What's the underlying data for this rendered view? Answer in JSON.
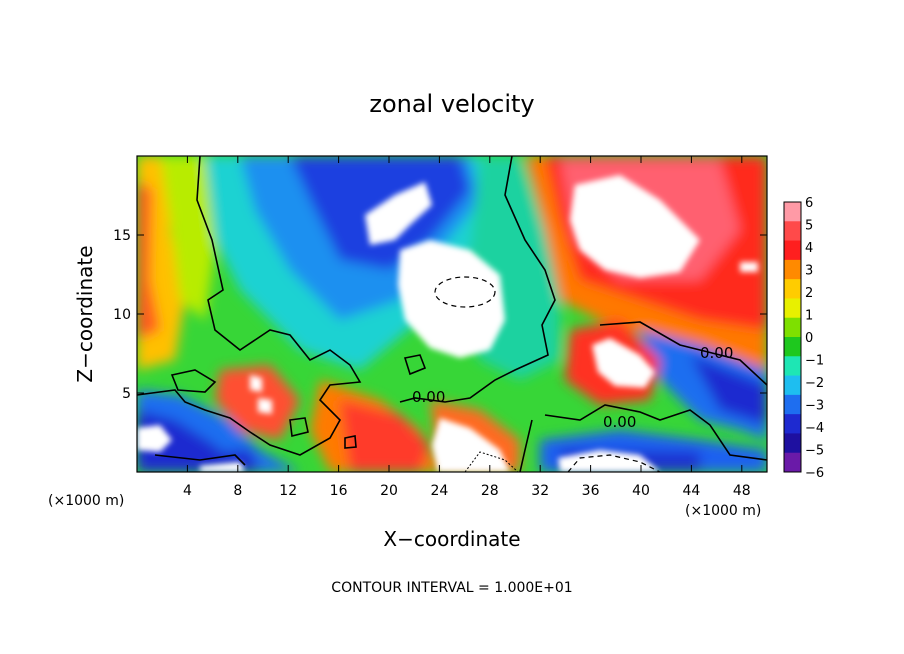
{
  "chart_data": {
    "type": "heatmap",
    "title": "zonal velocity",
    "xlabel": "X−coordinate",
    "ylabel": "Z−coordinate",
    "x_unit_label": "(×1000 m)",
    "x_unit_label_right": "(×1000 m)",
    "xlim": [
      0,
      50
    ],
    "ylim": [
      0,
      20
    ],
    "x_ticks": [
      "4",
      "8",
      "12",
      "16",
      "20",
      "24",
      "28",
      "32",
      "36",
      "40",
      "44",
      "48"
    ],
    "y_ticks": [
      "5",
      "10",
      "15"
    ],
    "colorbar": {
      "min": -6,
      "max": 6,
      "tick_labels": [
        "6",
        "5",
        "4",
        "3",
        "2",
        "1",
        "0",
        "−1",
        "−2",
        "−3",
        "−4",
        "−5",
        "−6"
      ],
      "colors": [
        "#ff9aa6",
        "#ff4a4a",
        "#ff1f1f",
        "#ff8a00",
        "#ffcc00",
        "#e8f000",
        "#7ee000",
        "#1ec81e",
        "#1ee6b4",
        "#1ebef0",
        "#1e6ef0",
        "#1e2ad0",
        "#1e10a0",
        "#6a1aa8"
      ]
    },
    "contour_labels": [
      "0.00",
      "0.00",
      "0.00"
    ],
    "footer": "CONTOUR INTERVAL = 1.000E+01"
  }
}
